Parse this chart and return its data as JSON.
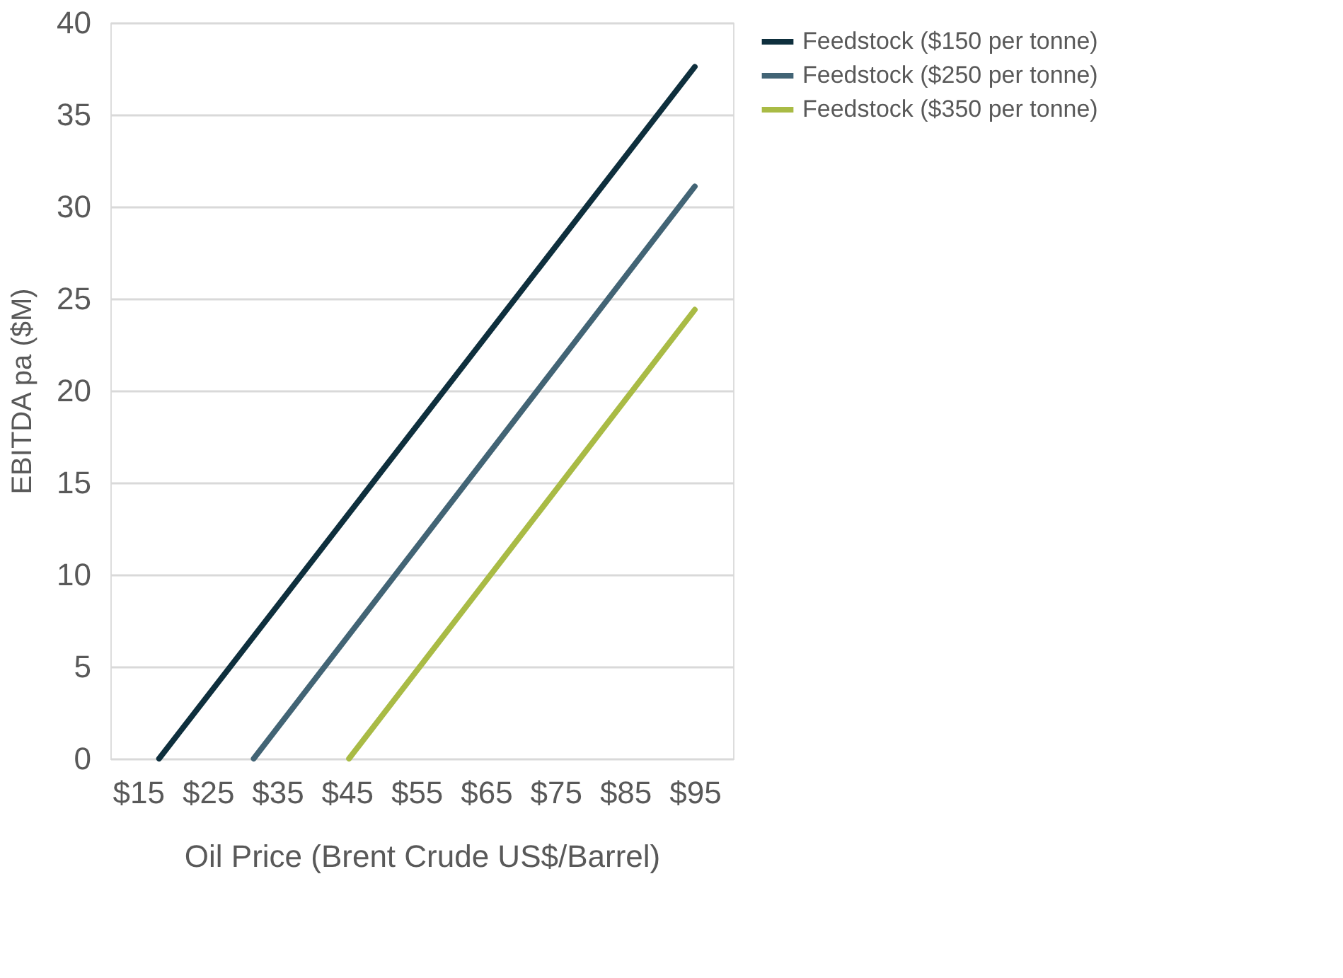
{
  "chart_data": {
    "type": "line",
    "xlabel": "Oil Price (Brent Crude US$/Barrel)",
    "ylabel": "EBITDA pa ($M)",
    "series": [
      {
        "name": "Feedstock ($150 per tonne)",
        "color": "#0e2f3d",
        "x": [
          18,
          95
        ],
        "values": [
          0,
          37.6
        ]
      },
      {
        "name": "Feedstock ($250 per tonne)",
        "color": "#426475",
        "x": [
          31.6,
          95
        ],
        "values": [
          0,
          31.1
        ]
      },
      {
        "name": "Feedstock ($350 per tonne)",
        "color": "#a9bb45",
        "x": [
          45.3,
          95
        ],
        "values": [
          0,
          24.4
        ]
      }
    ],
    "xlim": [
      11,
      100.5
    ],
    "xticks": [
      {
        "value": 15,
        "label": "$15"
      },
      {
        "value": 25,
        "label": "$25"
      },
      {
        "value": 35,
        "label": "$35"
      },
      {
        "value": 45,
        "label": "$45"
      },
      {
        "value": 55,
        "label": "$55"
      },
      {
        "value": 65,
        "label": "$65"
      },
      {
        "value": 75,
        "label": "$75"
      },
      {
        "value": 85,
        "label": "$85"
      },
      {
        "value": 95,
        "label": "$95"
      }
    ],
    "ylim": [
      0,
      40
    ],
    "yticks": [
      0,
      5,
      10,
      15,
      20,
      25,
      30,
      35,
      40
    ],
    "grid": "y",
    "legend": "right",
    "marker": "none",
    "line_style": "solid"
  }
}
